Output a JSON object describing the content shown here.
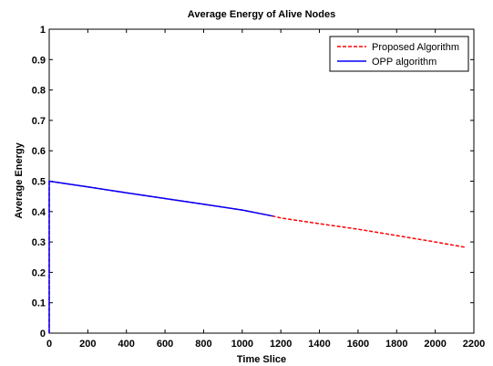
{
  "chart_data": {
    "type": "line",
    "title": "Average Energy of Alive Nodes",
    "xlabel": "Time Slice",
    "ylabel": "Average Energy",
    "xlim": [
      0,
      2200
    ],
    "ylim": [
      0,
      1
    ],
    "xticks": [
      0,
      200,
      400,
      600,
      800,
      1000,
      1200,
      1400,
      1600,
      1800,
      2000,
      2200
    ],
    "yticks": [
      0,
      0.1,
      0.2,
      0.3,
      0.4,
      0.5,
      0.6,
      0.7,
      0.8,
      0.9,
      1
    ],
    "ytick_labels": [
      "0",
      "0.1",
      "0.2",
      "0.3",
      "0.4",
      "0.5",
      "0.6",
      "0.7",
      "0.8",
      "0.9",
      "1"
    ],
    "grid": false,
    "legend_position": "top-right",
    "series": [
      {
        "name": "Proposed Algorithm",
        "color": "#ff0000",
        "style": "dashed",
        "x": [
          0,
          0,
          200,
          400,
          600,
          800,
          1000,
          1160,
          1200,
          1400,
          1600,
          1800,
          2000,
          2160
        ],
        "y": [
          0,
          0.5,
          0.481,
          0.462,
          0.443,
          0.424,
          0.405,
          0.385,
          0.379,
          0.36,
          0.342,
          0.321,
          0.3,
          0.282
        ]
      },
      {
        "name": "OPP algorithm",
        "color": "#0000ff",
        "style": "solid",
        "x": [
          0,
          0,
          200,
          400,
          600,
          800,
          1000,
          1160
        ],
        "y": [
          0,
          0.5,
          0.481,
          0.462,
          0.443,
          0.424,
          0.405,
          0.385
        ]
      }
    ]
  }
}
